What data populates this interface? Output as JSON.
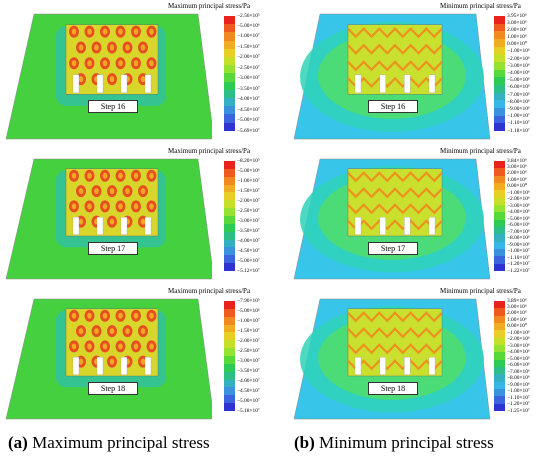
{
  "left_colors": [
    "#e8231c",
    "#ef5a1e",
    "#f0891f",
    "#f0ad21",
    "#e7cf25",
    "#c6e02a",
    "#95e231",
    "#57d93a",
    "#2ccb55",
    "#2bbf87",
    "#33b1c0",
    "#3a92df",
    "#3b64de",
    "#2f33cf"
  ],
  "right_colors": [
    "#e8231c",
    "#ef5a1e",
    "#f0891f",
    "#f0ad21",
    "#e7cf25",
    "#c6e02a",
    "#95e231",
    "#57d93a",
    "#2ccb55",
    "#2bbf87",
    "#33b1c0",
    "#36b7e8",
    "#3a92df",
    "#3b64de",
    "#2f33cf"
  ],
  "left_panels": [
    {
      "title": "Maximum principal stress/Pa",
      "step": "Step 16",
      "ticks": [
        "−2.56×10⁵",
        "−5.00×10⁶",
        "−1.00×10⁷",
        "−1.50×10⁷",
        "−2.00×10⁷",
        "−2.50×10⁷",
        "−3.00×10⁷",
        "−3.50×10⁷",
        "−4.00×10⁷",
        "−4.50×10⁷",
        "−5.00×10⁷",
        "−5.69×10⁷"
      ]
    },
    {
      "title": "Maximum principal stress/Pa",
      "step": "Step 17",
      "ticks": [
        "−8.20×10⁵",
        "−5.00×10⁶",
        "−1.00×10⁷",
        "−1.50×10⁷",
        "−2.00×10⁷",
        "−2.50×10⁷",
        "−3.00×10⁷",
        "−3.50×10⁷",
        "−4.00×10⁷",
        "−4.50×10⁷",
        "−5.00×10⁷",
        "−5.12×10⁷"
      ]
    },
    {
      "title": "Maximum principal stress/Pa",
      "step": "Step 18",
      "ticks": [
        "−7.90×10⁵",
        "−5.00×10⁶",
        "−1.00×10⁷",
        "−1.50×10⁷",
        "−2.00×10⁷",
        "−2.50×10⁷",
        "−3.00×10⁷",
        "−3.50×10⁷",
        "−4.00×10⁷",
        "−4.50×10⁷",
        "−5.00×10⁷",
        "−5.18×10⁷"
      ]
    }
  ],
  "right_panels": [
    {
      "title": "Minimum principal stress/Pa",
      "step": "Step 16",
      "ticks": [
        "3.95×10⁶",
        "3.00×10⁶",
        "2.00×10⁶",
        "1.00×10⁶",
        "0.00×10⁰",
        "−1.00×10⁶",
        "−2.00×10⁶",
        "−3.00×10⁶",
        "−4.00×10⁶",
        "−5.00×10⁶",
        "−6.00×10⁶",
        "−7.00×10⁶",
        "−8.00×10⁶",
        "−9.00×10⁶",
        "−1.00×10⁷",
        "−1.10×10⁷",
        "−1.18×10⁷"
      ]
    },
    {
      "title": "Minimum principal stress/Pa",
      "step": "Step 17",
      "ticks": [
        "3.84×10⁶",
        "3.00×10⁶",
        "2.00×10⁶",
        "1.00×10⁶",
        "0.00×10⁰",
        "−1.00×10⁶",
        "−2.00×10⁶",
        "−3.00×10⁶",
        "−4.00×10⁶",
        "−5.00×10⁶",
        "−6.00×10⁶",
        "−7.00×10⁶",
        "−8.00×10⁶",
        "−9.00×10⁶",
        "−1.00×10⁷",
        "−1.10×10⁷",
        "−1.20×10⁷",
        "−1.22×10⁷"
      ]
    },
    {
      "title": "Minimum principal stress/Pa",
      "step": "Step 18",
      "ticks": [
        "3.89×10⁶",
        "3.00×10⁶",
        "2.00×10⁶",
        "1.00×10⁶",
        "0.00×10⁰",
        "−1.00×10⁶",
        "−2.00×10⁶",
        "−3.00×10⁶",
        "−4.00×10⁶",
        "−5.00×10⁶",
        "−6.00×10⁶",
        "−7.00×10⁶",
        "−8.00×10⁶",
        "−9.00×10⁶",
        "−1.00×10⁷",
        "−1.10×10⁷",
        "−1.20×10⁷",
        "−1.25×10⁷"
      ]
    }
  ],
  "captions": {
    "a_label": "(a)",
    "a_text": "Maximum principal stress",
    "b_label": "(b)",
    "b_text": "Minimum principal stress"
  }
}
